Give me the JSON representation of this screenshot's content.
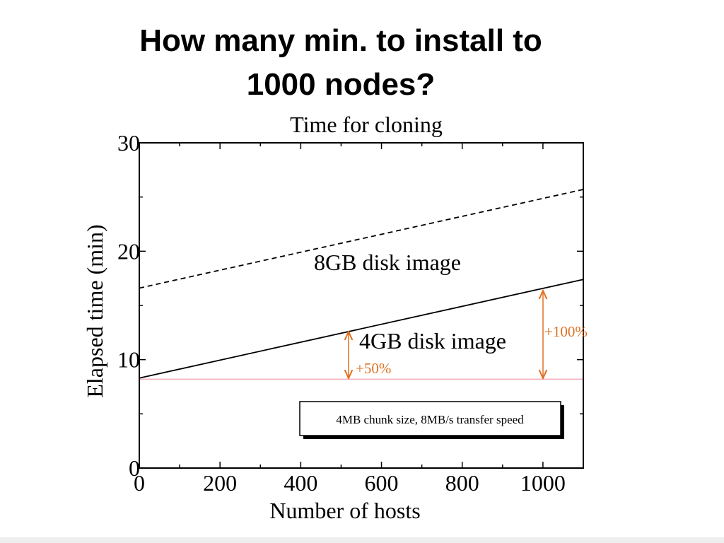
{
  "slide_title": [
    "How many min. to install to",
    "1000 nodes?"
  ],
  "chart_data": {
    "type": "line",
    "title": "Time for cloning",
    "xlabel": "Number of hosts",
    "ylabel": "Elapsed time (min)",
    "x": [
      0,
      1100
    ],
    "series": [
      {
        "name": "8GB disk image",
        "color": "#000000",
        "dashed": true,
        "values": [
          16.6,
          25.7
        ]
      },
      {
        "name": "4GB disk image",
        "color": "#000000",
        "dashed": false,
        "values": [
          8.3,
          17.4
        ]
      }
    ],
    "reference_line": {
      "value": 8.2,
      "color": "#f4a0b0"
    },
    "xlim": [
      0,
      1100
    ],
    "xticks": [
      0,
      200,
      400,
      600,
      800,
      1000
    ],
    "xminorticks": [
      100,
      300,
      500,
      700,
      900
    ],
    "ylim": [
      0,
      30
    ],
    "yticks": [
      0,
      10,
      20,
      30
    ],
    "yminorticks": [
      5,
      15,
      25
    ],
    "annotations": [
      {
        "text": "+50%",
        "color": "#e07020"
      },
      {
        "text": "+100%",
        "color": "#e07020"
      }
    ],
    "note": "4MB chunk size,  8MB/s transfer speed"
  }
}
